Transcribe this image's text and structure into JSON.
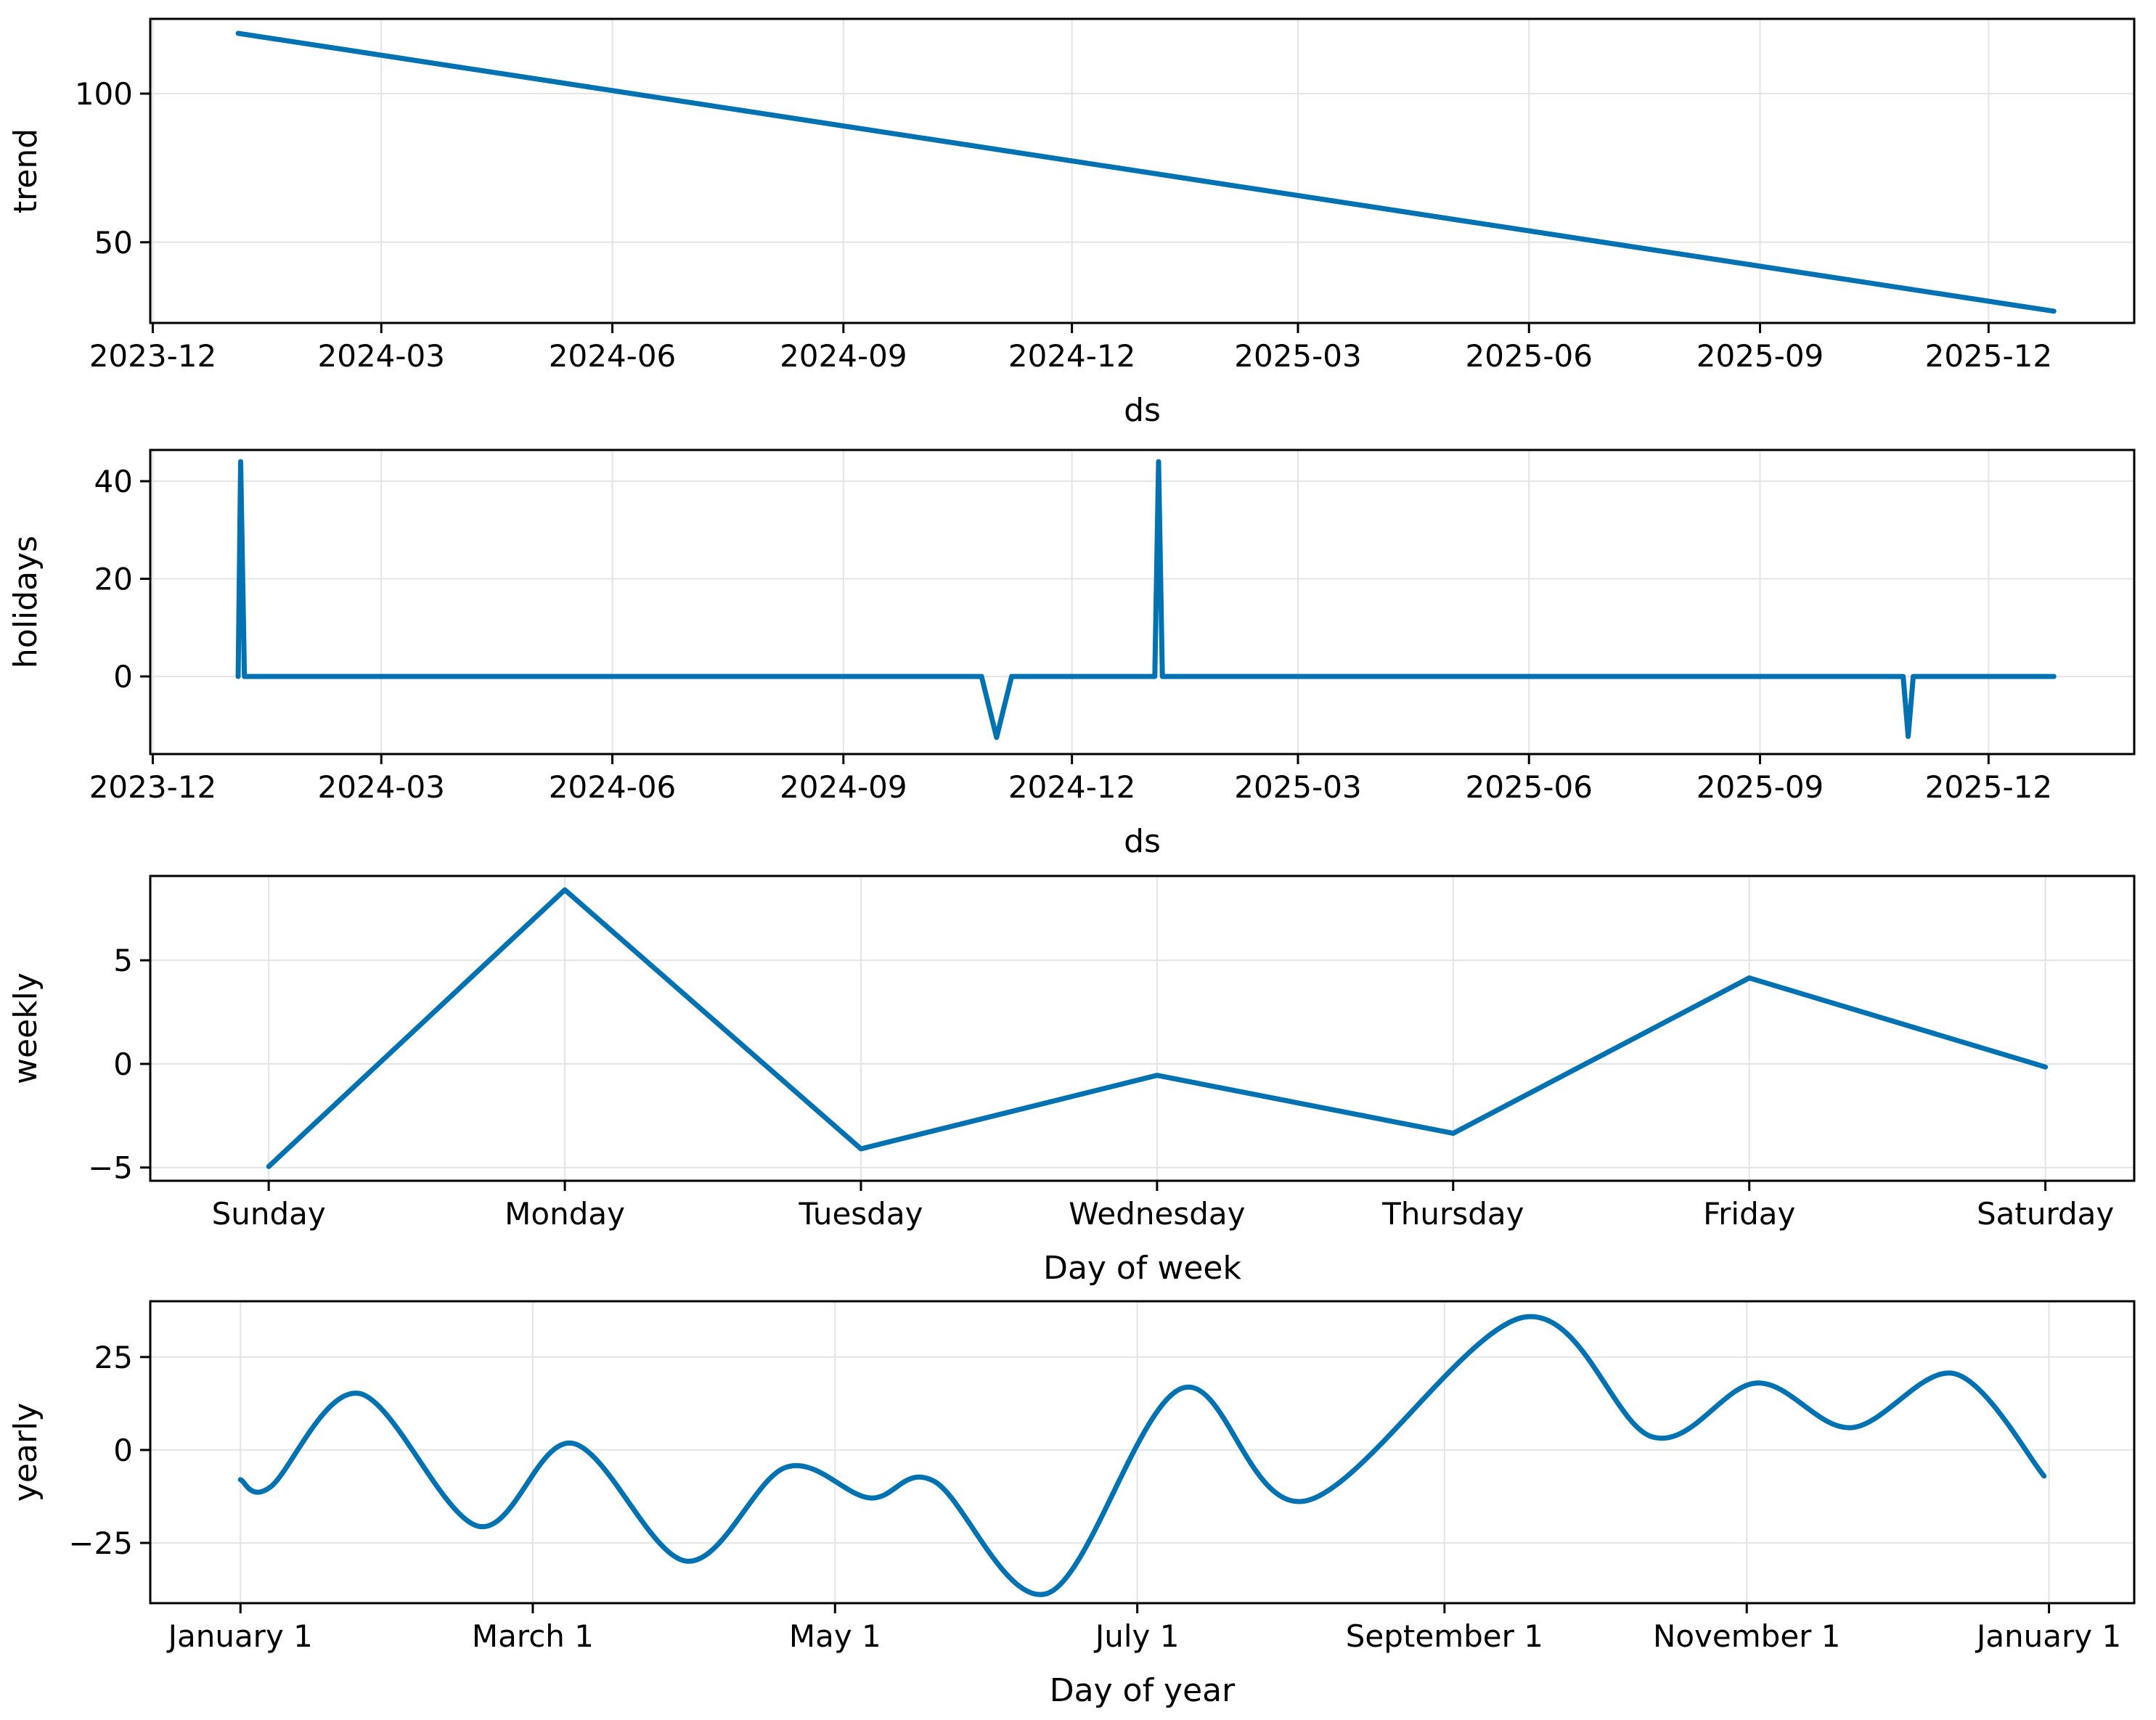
{
  "figure": {
    "kind": "prophet-forecast-components",
    "background": "#ffffff",
    "line_color": "#0072B2",
    "grid_color": "#e4e4e4",
    "spine_color": "#000000",
    "text_color": "#000000"
  },
  "chart_data": [
    {
      "id": "trend",
      "type": "line",
      "ylabel": "trend",
      "xlabel": "ds",
      "x_unit": "days since 2023-12-01",
      "xlim": [
        -1,
        789
      ],
      "ylim": [
        22.85,
        125.15
      ],
      "grid": true,
      "smooth": false,
      "xticks": [
        {
          "v": 0,
          "label": "2023-12"
        },
        {
          "v": 91,
          "label": "2024-03"
        },
        {
          "v": 183,
          "label": "2024-06"
        },
        {
          "v": 275,
          "label": "2024-09"
        },
        {
          "v": 366,
          "label": "2024-12"
        },
        {
          "v": 456,
          "label": "2025-03"
        },
        {
          "v": 548,
          "label": "2025-06"
        },
        {
          "v": 640,
          "label": "2025-09"
        },
        {
          "v": 731,
          "label": "2025-12"
        }
      ],
      "yticks": [
        {
          "v": 50,
          "label": "50"
        },
        {
          "v": 100,
          "label": "100"
        }
      ],
      "series": [
        {
          "name": "trend",
          "points": [
            [
              34,
              120.3
            ],
            [
              757,
              26.8
            ]
          ]
        }
      ]
    },
    {
      "id": "holidays",
      "type": "line",
      "ylabel": "holidays",
      "xlabel": "ds",
      "x_unit": "days since 2023-12-01",
      "xlim": [
        -1,
        789
      ],
      "ylim": [
        -15.9,
        46.4
      ],
      "grid": true,
      "smooth": false,
      "xticks": [
        {
          "v": 0,
          "label": "2023-12"
        },
        {
          "v": 91,
          "label": "2024-03"
        },
        {
          "v": 183,
          "label": "2024-06"
        },
        {
          "v": 275,
          "label": "2024-09"
        },
        {
          "v": 366,
          "label": "2024-12"
        },
        {
          "v": 456,
          "label": "2025-03"
        },
        {
          "v": 548,
          "label": "2025-06"
        },
        {
          "v": 640,
          "label": "2025-09"
        },
        {
          "v": 731,
          "label": "2025-12"
        }
      ],
      "yticks": [
        {
          "v": 0,
          "label": "0"
        },
        {
          "v": 20,
          "label": "20"
        },
        {
          "v": 40,
          "label": "40"
        }
      ],
      "series": [
        {
          "name": "holidays",
          "points": [
            [
              34,
              0
            ],
            [
              35,
              44
            ],
            [
              36.5,
              0
            ],
            [
              330,
              0
            ],
            [
              336,
              -12.5
            ],
            [
              342,
              0
            ],
            [
              399,
              0
            ],
            [
              400.5,
              44
            ],
            [
              402,
              0
            ],
            [
              697,
              0
            ],
            [
              699,
              -12.3
            ],
            [
              701,
              0
            ],
            [
              757,
              0
            ]
          ]
        }
      ]
    },
    {
      "id": "weekly",
      "type": "line",
      "ylabel": "weekly",
      "xlabel": "Day of week",
      "x_unit": "day index",
      "xlim": [
        -0.4,
        6.3
      ],
      "ylim": [
        -5.64,
        9.07
      ],
      "grid": true,
      "smooth": false,
      "xticks": [
        {
          "v": 0,
          "label": "Sunday"
        },
        {
          "v": 1,
          "label": "Monday"
        },
        {
          "v": 2,
          "label": "Tuesday"
        },
        {
          "v": 3,
          "label": "Wednesday"
        },
        {
          "v": 4,
          "label": "Thursday"
        },
        {
          "v": 5,
          "label": "Friday"
        },
        {
          "v": 6,
          "label": "Saturday"
        }
      ],
      "yticks": [
        {
          "v": -5,
          "label": "−5"
        },
        {
          "v": 0,
          "label": "0"
        },
        {
          "v": 5,
          "label": "5"
        }
      ],
      "series": [
        {
          "name": "weekly",
          "points": [
            [
              0,
              -4.95
            ],
            [
              1,
              8.4
            ],
            [
              2,
              -4.1
            ],
            [
              3,
              -0.55
            ],
            [
              4,
              -3.35
            ],
            [
              5,
              4.15
            ],
            [
              6,
              -0.15
            ]
          ]
        }
      ]
    },
    {
      "id": "yearly",
      "type": "line",
      "ylabel": "yearly",
      "xlabel": "Day of year",
      "x_unit": "day of year",
      "xlim": [
        -18.2,
        382.2
      ],
      "ylim": [
        -41.2,
        40.0
      ],
      "grid": true,
      "smooth": true,
      "xticks": [
        {
          "v": 0,
          "label": "January 1"
        },
        {
          "v": 59,
          "label": "March 1"
        },
        {
          "v": 120,
          "label": "May 1"
        },
        {
          "v": 181,
          "label": "July 1"
        },
        {
          "v": 243,
          "label": "September 1"
        },
        {
          "v": 304,
          "label": "November 1"
        },
        {
          "v": 365,
          "label": "January 1"
        }
      ],
      "yticks": [
        {
          "v": -25,
          "label": "−25"
        },
        {
          "v": 0,
          "label": "0"
        },
        {
          "v": 25,
          "label": "25"
        }
      ],
      "series": [
        {
          "name": "yearly",
          "points": [
            [
              0,
              -8
            ],
            [
              6,
              -10
            ],
            [
              24,
              15.2
            ],
            [
              48,
              -20.5
            ],
            [
              67,
              1.8
            ],
            [
              90,
              -29.9
            ],
            [
              110,
              -4.7
            ],
            [
              127,
              -12.9
            ],
            [
              140,
              -8.4
            ],
            [
              163,
              -38.5
            ],
            [
              190,
              16.6
            ],
            [
              215,
              -13.7
            ],
            [
              259,
              35.7
            ],
            [
              285,
              3.5
            ],
            [
              306,
              18
            ],
            [
              325,
              6
            ],
            [
              346,
              20.5
            ],
            [
              364,
              -7
            ]
          ]
        }
      ]
    }
  ]
}
